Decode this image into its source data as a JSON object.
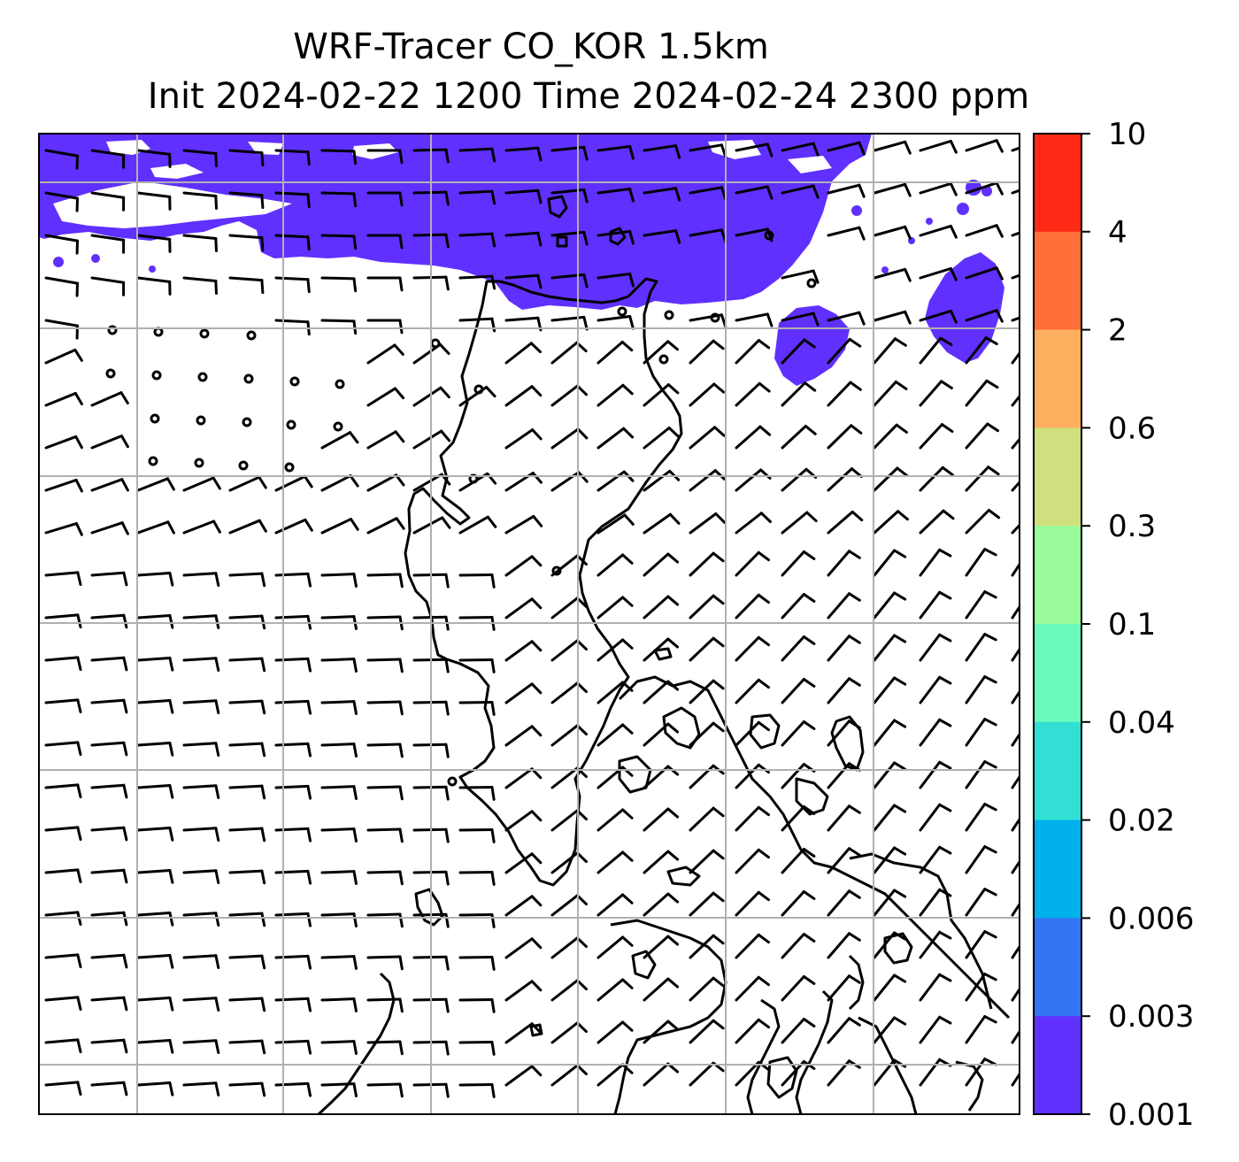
{
  "title": {
    "line1": "WRF-Tracer CO_KOR 1.5km",
    "line2": "Init 2024-02-22 1200 Time 2024-02-24 2300 ppm"
  },
  "colorbar": {
    "levels": [
      "10",
      "4",
      "2",
      "0.6",
      "0.3",
      "0.1",
      "0.04",
      "0.02",
      "0.006",
      "0.003",
      "0.001"
    ],
    "colors": [
      "#ff2a16",
      "#ff7038",
      "#fdaf5f",
      "#d0e07f",
      "#99fb9c",
      "#68fbbd",
      "#31dfd4",
      "#00b1ec",
      "#3574f4",
      "#6030ff"
    ]
  },
  "map": {
    "field_color": "#6030ff",
    "grid_color": "#b0b0b0",
    "coast_color": "#000000",
    "barb_color": "#000000"
  }
}
